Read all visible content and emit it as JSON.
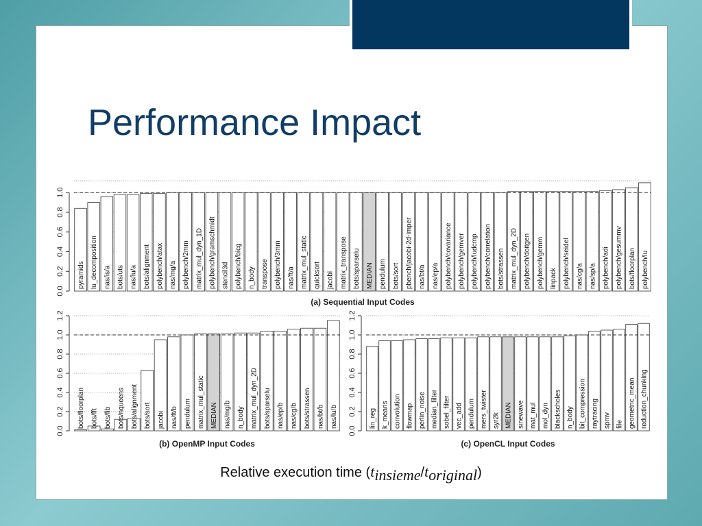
{
  "title": "Performance Impact",
  "caption": {
    "text": "Relative execution time",
    "open": "(",
    "formula": [
      {
        "base": "t",
        "sub": "insieme"
      },
      {
        "base": "t",
        "sub": "original"
      }
    ],
    "sep": "/",
    "close": ")"
  },
  "chart_data": [
    {
      "type": "bar",
      "caption": "(a) Sequential Input Codes",
      "categories": [
        "pyramids",
        "lu_decomposition",
        "nas/is/a",
        "bots/uts",
        "nas/lu/a",
        "bots/alignment",
        "polybench/atax",
        "nas/mg/a",
        "polybench/2mm",
        "matrix_mul_dyn_1D",
        "polybench/gramschmidt",
        "stencil3d",
        "polybench/bicg",
        "n_body",
        "transpose",
        "polybench/3mm",
        "nas/ft/a",
        "matrix_mul_static",
        "quicksort",
        "jacobi",
        "matrix_transpose",
        "bots/sparselu",
        "MEDIAN",
        "pendulum",
        "bots/sort",
        "pbench/jacobi-2d-imper",
        "nas/bt/a",
        "nas/ep/a",
        "polybench/covariance",
        "polybench/gemver",
        "polybench/ludcmp",
        "polybench/correlation",
        "bots/strassen",
        "matrix_mul_dyn_2D",
        "polybench/doitgen",
        "polybench/gemm",
        "linpack",
        "polybench/seidel",
        "nas/cg/a",
        "nas/sp/a",
        "polybench/adi",
        "polybench/gesummv",
        "bots/floorplan",
        "polybench/lu"
      ],
      "values": [
        0.84,
        0.9,
        0.96,
        0.98,
        0.98,
        0.99,
        0.99,
        1.0,
        1.0,
        1.0,
        1.0,
        1.0,
        1.0,
        1.0,
        1.0,
        1.0,
        1.0,
        1.0,
        1.0,
        1.0,
        1.0,
        1.0,
        1.0,
        1.0,
        1.0,
        1.0,
        1.0,
        1.0,
        1.0,
        1.0,
        1.0,
        1.0,
        1.0,
        1.01,
        1.01,
        1.01,
        1.01,
        1.01,
        1.01,
        1.01,
        1.02,
        1.03,
        1.05,
        1.1
      ],
      "colors": [
        "#ffffff",
        "#ffffff",
        "#ffffff",
        "#ffffff",
        "#ffffff",
        "#ffffff",
        "#ffffff",
        "#ffffff",
        "#ffffff",
        "#ffffff",
        "#ffffff",
        "#ffffff",
        "#ffffff",
        "#ffffff",
        "#ffffff",
        "#ffffff",
        "#ffffff",
        "#ffffff",
        "#ffffff",
        "#ffffff",
        "#ffffff",
        "#ffffff",
        "#d3d3d3",
        "#ffffff",
        "#ffffff",
        "#ffffff",
        "#ffffff",
        "#ffffff",
        "#ffffff",
        "#ffffff",
        "#ffffff",
        "#ffffff",
        "#ffffff",
        "#ffffff",
        "#ffffff",
        "#ffffff",
        "#ffffff",
        "#ffffff",
        "#ffffff",
        "#ffffff",
        "#ffffff",
        "#ffffff",
        "#ffffff",
        "#ffffff"
      ],
      "ylim": [
        0,
        1.12
      ],
      "yticks": [
        {
          "value": 0,
          "label": "0.0"
        },
        0.2,
        0.4,
        0.6,
        0.8,
        {
          "value": 1,
          "label": "1.0"
        }
      ],
      "reference_line": 1,
      "grid": true
    },
    {
      "type": "bar",
      "caption": "(b) OpenMP Input Codes",
      "categories": [
        "bots/floorplan",
        "bots/fft",
        "bots/fib",
        "bots/nqueens",
        "bots/alignment",
        "bots/sort",
        "jacobi",
        "nas/ft/b",
        "pendulum",
        "matrix_mul_static",
        "MEDIAN",
        "nas/mg/b",
        "n_body",
        "matrix_mul_dyn_2D",
        "bots/sparselu",
        "nas/ep/b",
        "nas/cg/b",
        "bots/strassen",
        "nas/bt/b",
        "nas/lu/b"
      ],
      "values": [
        0.01,
        0.05,
        0.02,
        0.12,
        0.13,
        0.63,
        0.95,
        0.98,
        1.0,
        1.01,
        1.01,
        1.01,
        1.02,
        1.02,
        1.04,
        1.04,
        1.06,
        1.07,
        1.07,
        1.15
      ],
      "colors": [
        "#ffffff",
        "#ffffff",
        "#ffffff",
        "#ffffff",
        "#ffffff",
        "#ffffff",
        "#ffffff",
        "#ffffff",
        "#ffffff",
        "#ffffff",
        "#d3d3d3",
        "#ffffff",
        "#ffffff",
        "#ffffff",
        "#ffffff",
        "#ffffff",
        "#ffffff",
        "#ffffff",
        "#ffffff",
        "#ffffff"
      ],
      "ylim": [
        0,
        1.2
      ],
      "yticks": [
        {
          "value": 0,
          "label": "0.0"
        },
        0.2,
        0.4,
        0.6,
        0.8,
        {
          "value": 1,
          "label": "1.0"
        },
        1.2
      ],
      "reference_line": 1,
      "grid": true
    },
    {
      "type": "bar",
      "caption": "(c) OpenCL Input Codes",
      "categories": [
        "lin_reg",
        "k_means",
        "convolution",
        "flowmap",
        "perlin_noise",
        "median_filter",
        "sobel_filter",
        "vec_add",
        "pendulum",
        "mers_twister",
        "syr2k",
        "MEDIAN",
        "sinewave",
        "mat_mul",
        "mol_dyn",
        "blackscholes",
        "n_body",
        "bit_compression",
        "raytracing",
        "spmv",
        "file",
        "geometric_mean",
        "reduction_chunking"
      ],
      "values": [
        0.88,
        0.94,
        0.94,
        0.95,
        0.96,
        0.96,
        0.97,
        0.97,
        0.97,
        0.98,
        0.98,
        0.98,
        0.98,
        0.98,
        0.98,
        0.98,
        0.99,
        1.0,
        1.04,
        1.05,
        1.06,
        1.11,
        1.12
      ],
      "colors": [
        "#ffffff",
        "#ffffff",
        "#ffffff",
        "#ffffff",
        "#ffffff",
        "#ffffff",
        "#ffffff",
        "#ffffff",
        "#ffffff",
        "#ffffff",
        "#ffffff",
        "#d3d3d3",
        "#ffffff",
        "#ffffff",
        "#ffffff",
        "#ffffff",
        "#ffffff",
        "#ffffff",
        "#ffffff",
        "#ffffff",
        "#ffffff",
        "#ffffff",
        "#ffffff"
      ],
      "ylim": [
        0,
        1.2
      ],
      "yticks": [
        {
          "value": 0,
          "label": "0.0"
        },
        0.2,
        0.4,
        0.6,
        0.8,
        {
          "value": 1,
          "label": "1.0"
        },
        1.2
      ],
      "reference_line": 1,
      "grid": true
    }
  ]
}
